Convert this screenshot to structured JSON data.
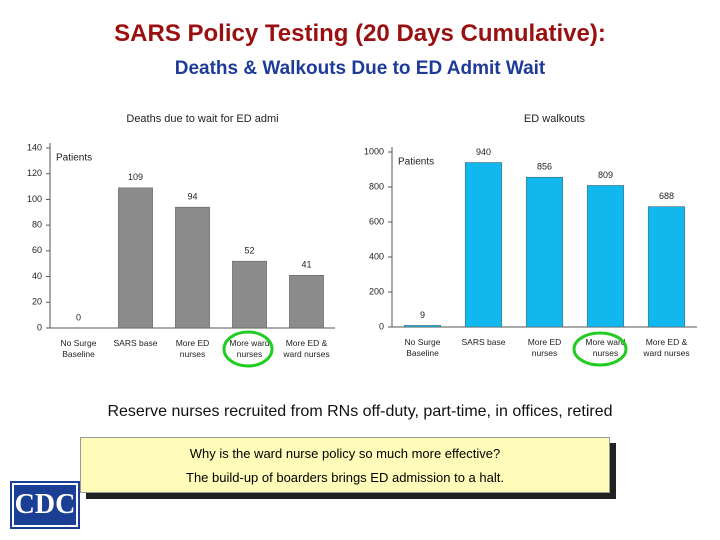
{
  "slide": {
    "title": "SARS Policy Testing (20 Days Cumulative):",
    "subtitle": "Deaths & Walkouts Due to ED Admit Wait",
    "caption": "Reserve nurses recruited from RNs off-duty, part-time, in offices, retired",
    "callout": [
      "Why is the ward nurse policy so much more effective?",
      "The build-up of boarders brings ED admission to a halt."
    ],
    "logo": "CDC"
  },
  "chart_data": [
    {
      "type": "bar",
      "title": "Deaths due to wait for ED admi",
      "y_label": "Patients",
      "categories": [
        "No Surge Baseline",
        "SARS base",
        "More ED nurses",
        "More ward nurses",
        "More ED & ward nurses"
      ],
      "values": [
        0,
        109,
        94,
        52,
        41
      ],
      "color": "#8c8c8c",
      "ylim": [
        0,
        140
      ],
      "yticks": [
        0,
        20,
        40,
        60,
        80,
        100,
        120,
        140
      ],
      "grid": false
    },
    {
      "type": "bar",
      "title": "ED walkouts",
      "y_label": "Patients",
      "categories": [
        "No Surge Baseline",
        "SARS base",
        "More ED nurses",
        "More ward nurses",
        "More ED & ward nurses"
      ],
      "values": [
        9,
        940,
        856,
        809,
        688
      ],
      "color": "#10b8ee",
      "ylim": [
        0,
        1000
      ],
      "yticks": [
        0,
        200,
        400,
        600,
        800,
        1000
      ],
      "grid": false
    }
  ]
}
